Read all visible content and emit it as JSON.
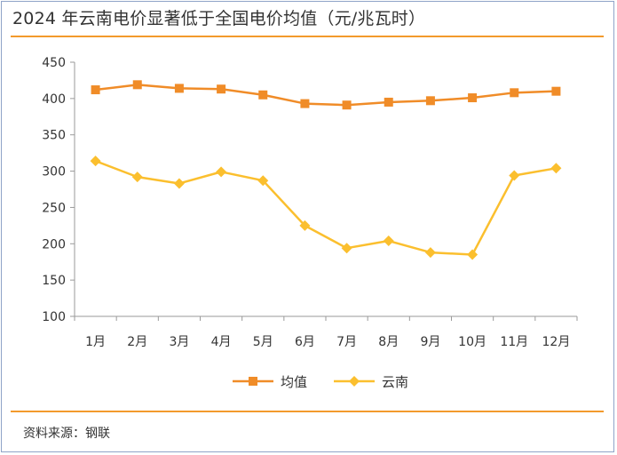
{
  "title": "2024 年云南电价显著低于全国电价均值（元/兆瓦时）",
  "source": "资料来源：钢联",
  "colors": {
    "accent_rule": "#f39a2c",
    "axis": "#9a9a9a",
    "text": "#333333"
  },
  "chart_data": {
    "type": "line",
    "categories": [
      "1月",
      "2月",
      "3月",
      "4月",
      "5月",
      "6月",
      "7月",
      "8月",
      "9月",
      "10月",
      "11月",
      "12月"
    ],
    "ylim": [
      100,
      450
    ],
    "yticks": [
      100,
      150,
      200,
      250,
      300,
      350,
      400,
      450
    ],
    "grid": false,
    "legend": "bottom-center",
    "series": [
      {
        "name": "均值",
        "color": "#f08c28",
        "marker": "square",
        "values": [
          412,
          419,
          414,
          413,
          405,
          393,
          391,
          395,
          397,
          401,
          408,
          410
        ]
      },
      {
        "name": "云南",
        "color": "#fbbf2e",
        "marker": "diamond",
        "values": [
          314,
          292,
          283,
          299,
          287,
          225,
          194,
          204,
          188,
          185,
          294,
          304
        ]
      }
    ]
  }
}
